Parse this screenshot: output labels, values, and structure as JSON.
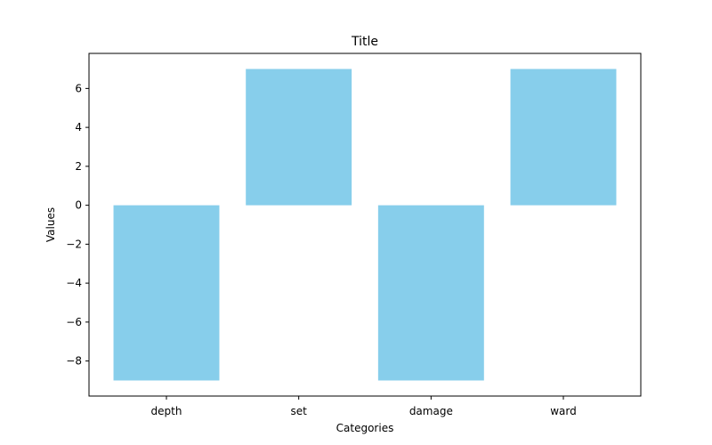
{
  "chart_data": {
    "type": "bar",
    "title": "Title",
    "xlabel": "Categories",
    "ylabel": "Values",
    "categories": [
      "depth",
      "set",
      "damage",
      "ward"
    ],
    "values": [
      -9,
      7,
      -9,
      7
    ],
    "ylim": [
      -9.8,
      7.8
    ],
    "yticks": [
      -8,
      -6,
      -4,
      -2,
      0,
      2,
      4,
      6
    ],
    "grid": false,
    "legend": "none",
    "bar_color": "#87CEEB"
  }
}
